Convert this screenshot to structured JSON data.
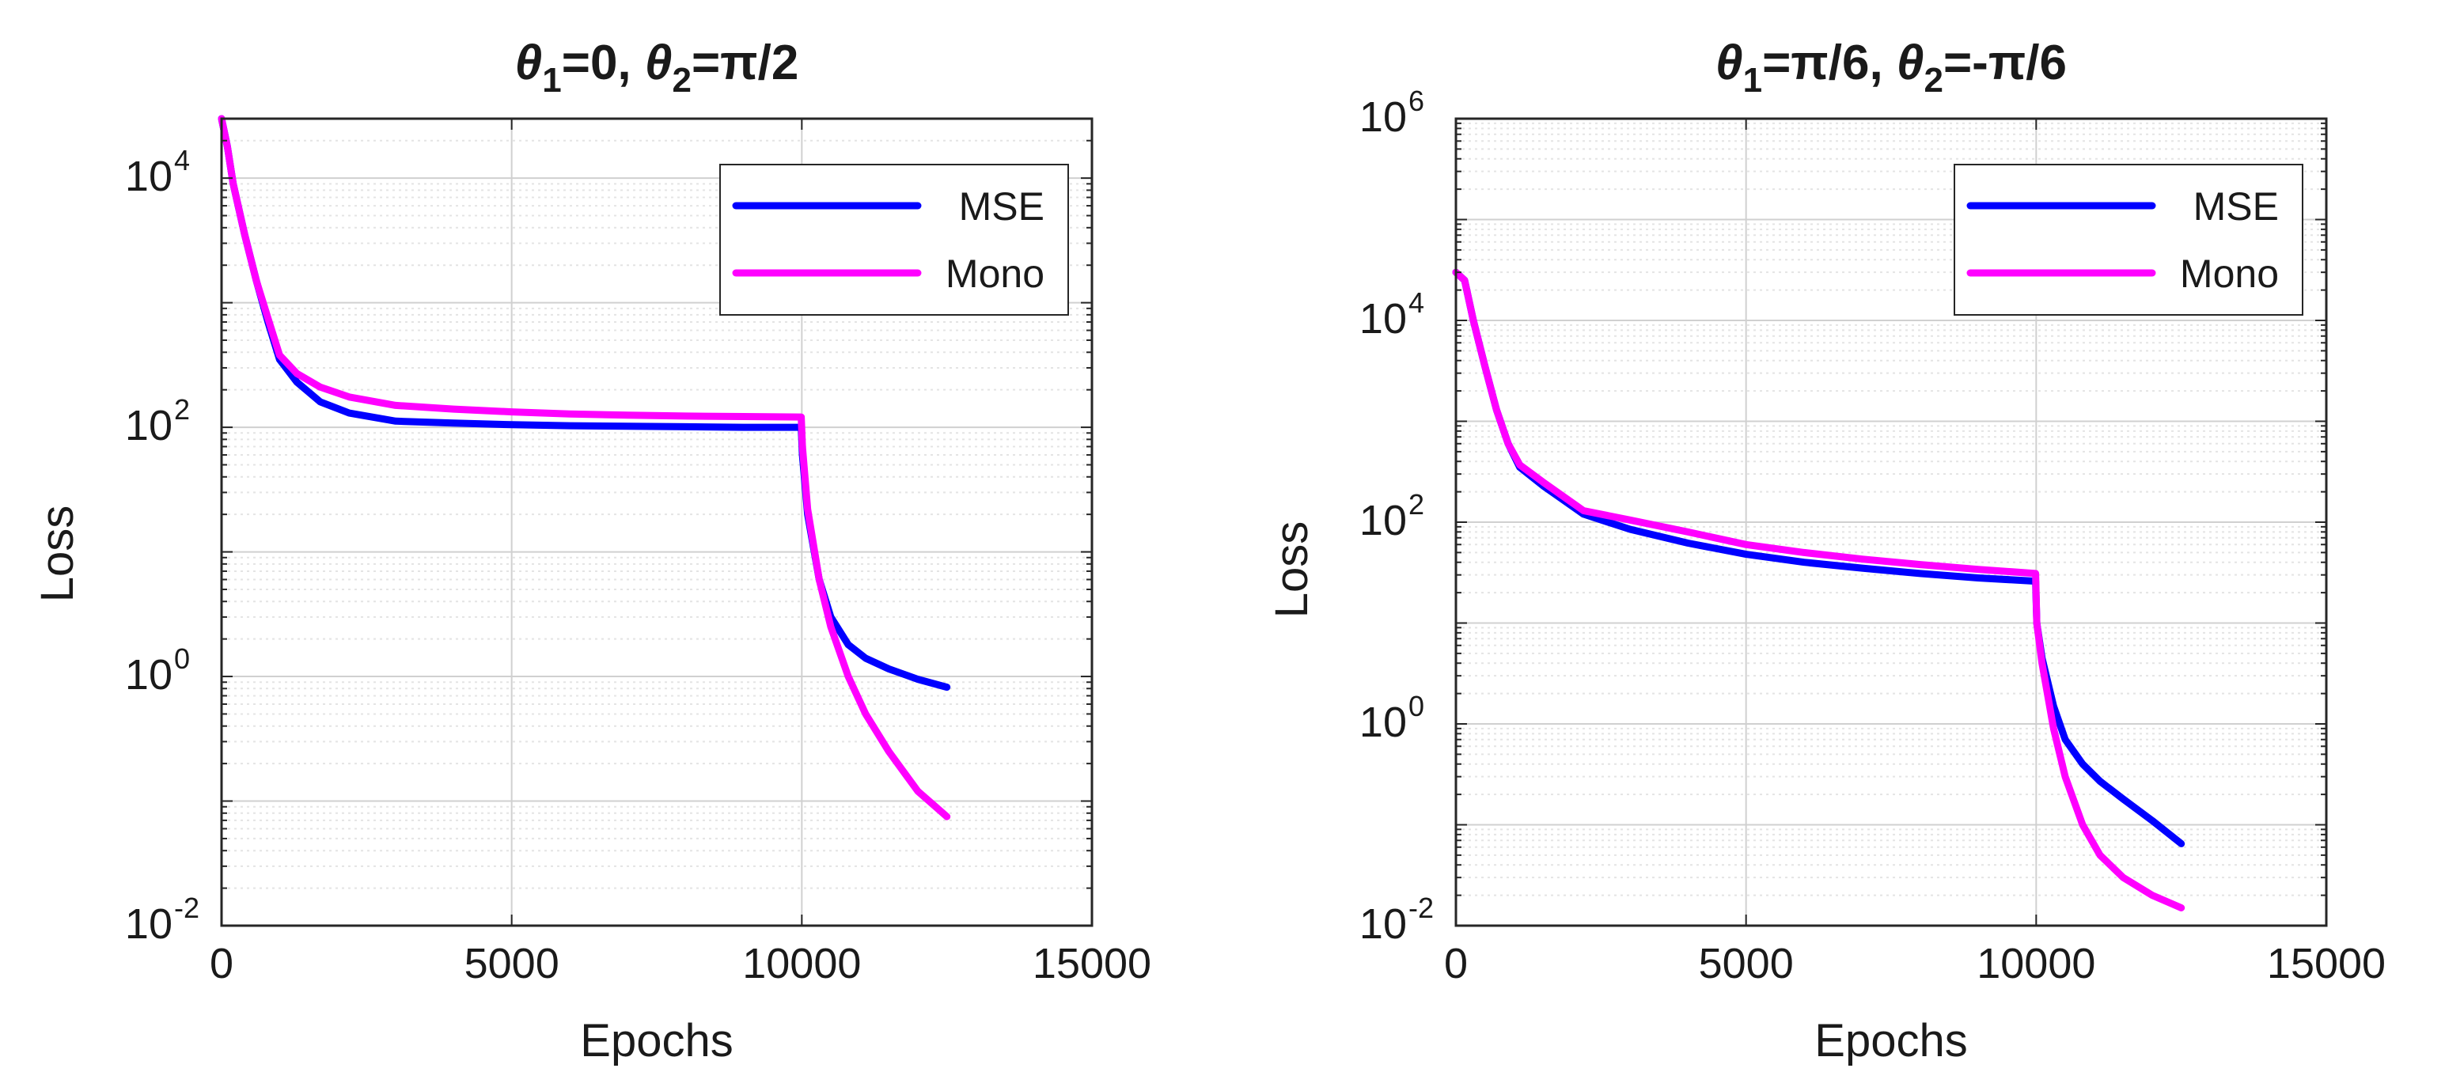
{
  "chart_data": [
    {
      "type": "line",
      "title": {
        "sym1": "θ",
        "sub1": "1",
        "eq1": "=0, ",
        "sym2": "θ",
        "sub2": "2",
        "eq2": "=π/2"
      },
      "xlabel": "Epochs",
      "ylabel": "Loss",
      "yscale": "log",
      "xlim": [
        0,
        15000
      ],
      "ylim": [
        0.01,
        30000
      ],
      "xticks": [
        0,
        5000,
        10000,
        15000
      ],
      "xtick_labels": [
        "0",
        "5000",
        "10000",
        "15000"
      ],
      "yticks": [
        0.01,
        1,
        100,
        10000
      ],
      "ytick_labels": [
        {
          "base": "10",
          "exp": "-2"
        },
        {
          "base": "10",
          "exp": "0"
        },
        {
          "base": "10",
          "exp": "2"
        },
        {
          "base": "10",
          "exp": "4"
        }
      ],
      "grid": true,
      "legend_position": "top-right",
      "series": [
        {
          "name": "MSE",
          "color": "#0000ff",
          "x": [
            0,
            100,
            200,
            400,
            600,
            800,
            1000,
            1300,
            1700,
            2200,
            3000,
            4000,
            5000,
            6000,
            7000,
            8000,
            9000,
            9990,
            10010,
            10100,
            10300,
            10500,
            10800,
            11100,
            11500,
            12000,
            12500
          ],
          "y": [
            30000,
            18000,
            9000,
            3500,
            1500,
            700,
            350,
            230,
            160,
            130,
            112,
            108,
            105,
            103,
            102,
            101,
            100,
            100,
            60,
            20,
            6,
            3,
            1.8,
            1.4,
            1.15,
            0.95,
            0.82
          ]
        },
        {
          "name": "Mono",
          "color": "#ff00ff",
          "x": [
            0,
            100,
            200,
            400,
            600,
            800,
            1000,
            1300,
            1700,
            2200,
            3000,
            4000,
            5000,
            6000,
            7000,
            8000,
            9000,
            9990,
            10010,
            10100,
            10300,
            10500,
            10800,
            11100,
            11500,
            12000,
            12500
          ],
          "y": [
            30000,
            18000,
            9000,
            3500,
            1500,
            750,
            380,
            270,
            210,
            175,
            150,
            140,
            133,
            128,
            125,
            123,
            122,
            121,
            70,
            22,
            6,
            2.5,
            1.0,
            0.5,
            0.25,
            0.12,
            0.075
          ]
        }
      ]
    },
    {
      "type": "line",
      "title": {
        "sym1": "θ",
        "sub1": "1",
        "eq1": "=π/6, ",
        "sym2": "θ",
        "sub2": "2",
        "eq2": "=-π/6"
      },
      "xlabel": "Epochs",
      "ylabel": "Loss",
      "yscale": "log",
      "xlim": [
        0,
        15000
      ],
      "ylim": [
        0.01,
        1000000
      ],
      "xticks": [
        0,
        5000,
        10000,
        15000
      ],
      "xtick_labels": [
        "0",
        "5000",
        "10000",
        "15000"
      ],
      "yticks": [
        0.01,
        1,
        100,
        10000,
        1000000
      ],
      "ytick_labels": [
        {
          "base": "10",
          "exp": "-2"
        },
        {
          "base": "10",
          "exp": "0"
        },
        {
          "base": "10",
          "exp": "2"
        },
        {
          "base": "10",
          "exp": "4"
        },
        {
          "base": "10",
          "exp": "6"
        }
      ],
      "grid": true,
      "legend_position": "top-right",
      "series": [
        {
          "name": "MSE",
          "color": "#0000ff",
          "x": [
            0,
            150,
            300,
            500,
            700,
            900,
            1100,
            1500,
            2200,
            3000,
            4000,
            5000,
            6000,
            7000,
            8000,
            9000,
            9990,
            10010,
            10100,
            10300,
            10500,
            10800,
            11100,
            11500,
            12000,
            12500
          ],
          "y": [
            30000,
            25000,
            10000,
            3500,
            1300,
            600,
            350,
            230,
            120,
            85,
            62,
            48,
            40,
            35,
            31,
            28,
            26,
            10,
            4.5,
            1.5,
            0.7,
            0.4,
            0.27,
            0.18,
            0.11,
            0.065
          ],
          "end_marker": false
        },
        {
          "name": "Mono",
          "color": "#ff00ff",
          "x": [
            0,
            150,
            300,
            500,
            700,
            900,
            1100,
            1500,
            2200,
            3000,
            4000,
            5000,
            6000,
            7000,
            8000,
            9000,
            9990,
            10010,
            10100,
            10300,
            10500,
            10800,
            11100,
            11500,
            12000,
            12500
          ],
          "y": [
            30000,
            25000,
            10000,
            3500,
            1300,
            600,
            370,
            250,
            130,
            105,
            80,
            60,
            50,
            43,
            38,
            34,
            31,
            10,
            4.0,
            0.9,
            0.3,
            0.1,
            0.05,
            0.03,
            0.02,
            0.015
          ]
        }
      ]
    }
  ]
}
